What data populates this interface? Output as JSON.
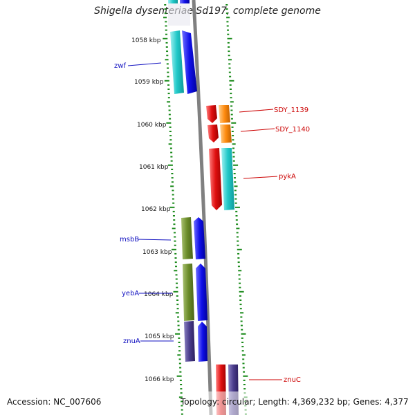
{
  "title": "Shigella dysenteriae Sd197, complete genome",
  "footer": {
    "accession": "Accession: NC_007606",
    "summary": "Topology: circular; Length: 4,369,232 bp; Genes: 4,377"
  },
  "scale_labels": [
    "1058 kbp",
    "1059 kbp",
    "1060 kbp",
    "1061 kbp",
    "1062 kbp",
    "1063 kbp",
    "1064 kbp",
    "1065 kbp",
    "1066 kbp"
  ],
  "gene_labels_left": [
    "zwf",
    "msbB",
    "yebA",
    "znuA"
  ],
  "gene_labels_right": [
    "SDY_1139",
    "SDY_1140",
    "pykA",
    "znuC"
  ],
  "colors": {
    "label_left": "#1010c0",
    "label_right": "#cc0000",
    "ticks": "#1a8a1a",
    "backbone": "#808080",
    "cyan": "#20c8c8",
    "blue": "#1010e8",
    "olive": "#6b8c2a",
    "navy": "#4a3c8c",
    "red": "#e01010",
    "orange": "#ff8c10"
  }
}
